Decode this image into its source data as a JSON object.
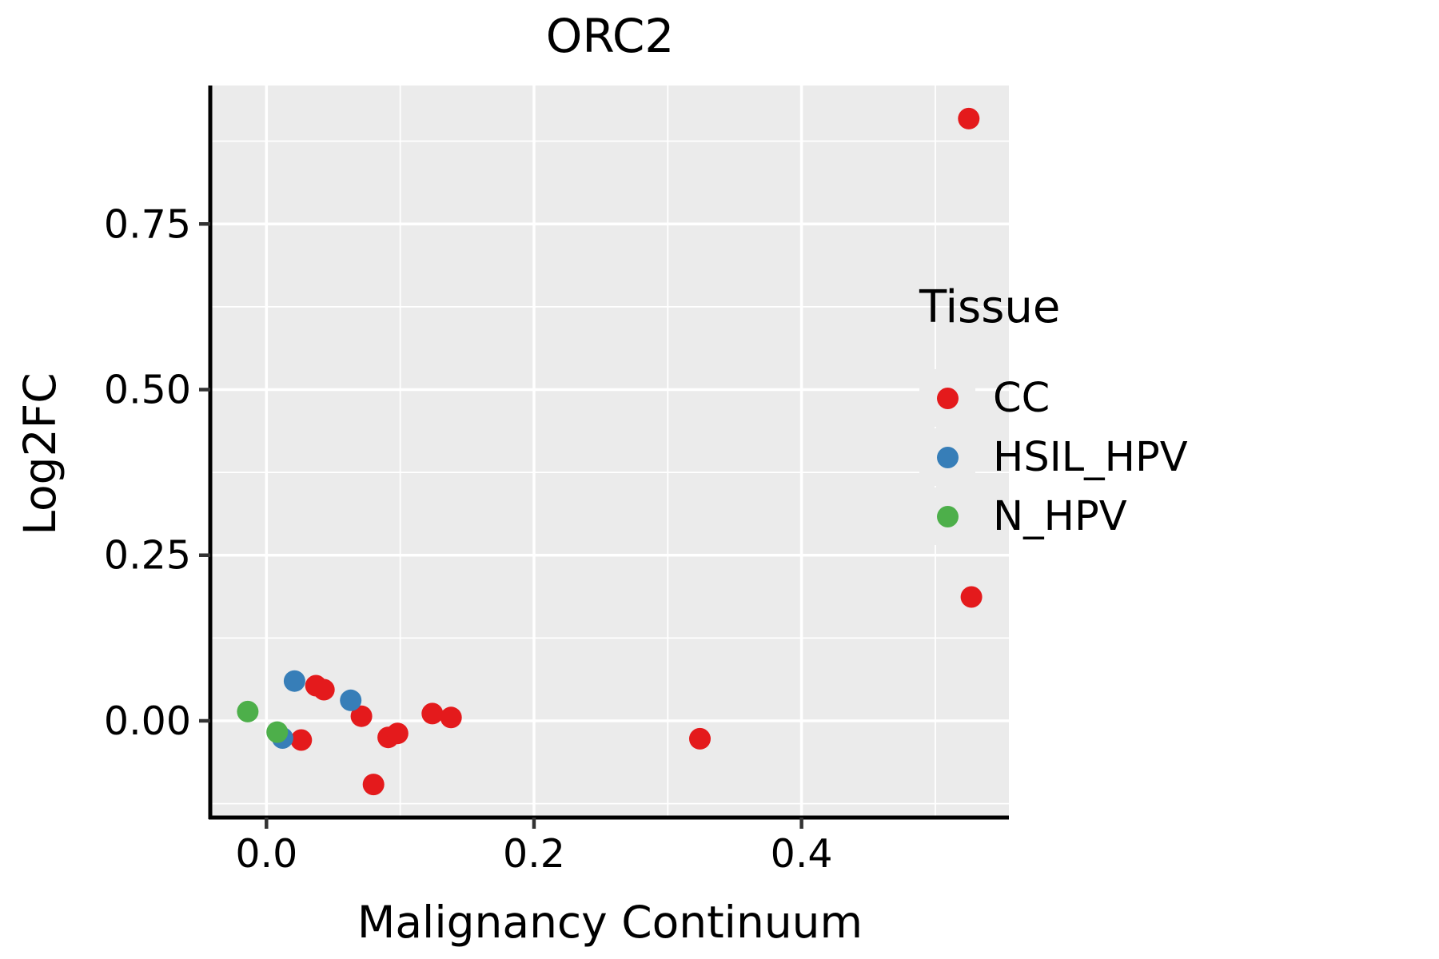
{
  "chart_data": {
    "type": "scatter",
    "title": "ORC2",
    "xlabel": "Malignancy Continuum",
    "ylabel": "Log2FC",
    "legend_title": "Tissue",
    "xlim": [
      -0.042,
      0.555
    ],
    "ylim": [
      -0.146,
      0.959
    ],
    "x_ticks": [
      0.0,
      0.2,
      0.4
    ],
    "x_tick_labels": [
      "0.0",
      "0.2",
      "0.4"
    ],
    "x_minor_ticks": [
      0.1,
      0.3,
      0.5
    ],
    "y_ticks": [
      0.0,
      0.25,
      0.5,
      0.75
    ],
    "y_tick_labels": [
      "0.00",
      "0.25",
      "0.50",
      "0.75"
    ],
    "y_minor_ticks": [
      -0.125,
      0.125,
      0.375,
      0.625,
      0.875
    ],
    "grid": "on",
    "legend_position": "right",
    "panel_bg": "#EBEBEB",
    "grid_color": "#FFFFFF",
    "axis_color": "#000000",
    "tick_color": "#333333",
    "point_radius": 13.5,
    "series": [
      {
        "name": "CC",
        "color": "#E41A1C",
        "points": [
          [
            0.026,
            -0.029
          ],
          [
            0.037,
            0.053
          ],
          [
            0.043,
            0.047
          ],
          [
            0.071,
            0.007
          ],
          [
            0.08,
            -0.096
          ],
          [
            0.091,
            -0.025
          ],
          [
            0.098,
            -0.019
          ],
          [
            0.124,
            0.011
          ],
          [
            0.138,
            0.005
          ],
          [
            0.324,
            -0.027
          ],
          [
            0.516,
            0.507
          ],
          [
            0.525,
            0.909
          ],
          [
            0.527,
            0.187
          ]
        ]
      },
      {
        "name": "HSIL_HPV",
        "color": "#377EB8",
        "points": [
          [
            0.012,
            -0.026
          ],
          [
            0.021,
            0.06
          ],
          [
            0.063,
            0.031
          ]
        ]
      },
      {
        "name": "N_HPV",
        "color": "#4DAF4A",
        "points": [
          [
            -0.014,
            0.014
          ],
          [
            0.008,
            -0.017
          ]
        ]
      }
    ]
  }
}
